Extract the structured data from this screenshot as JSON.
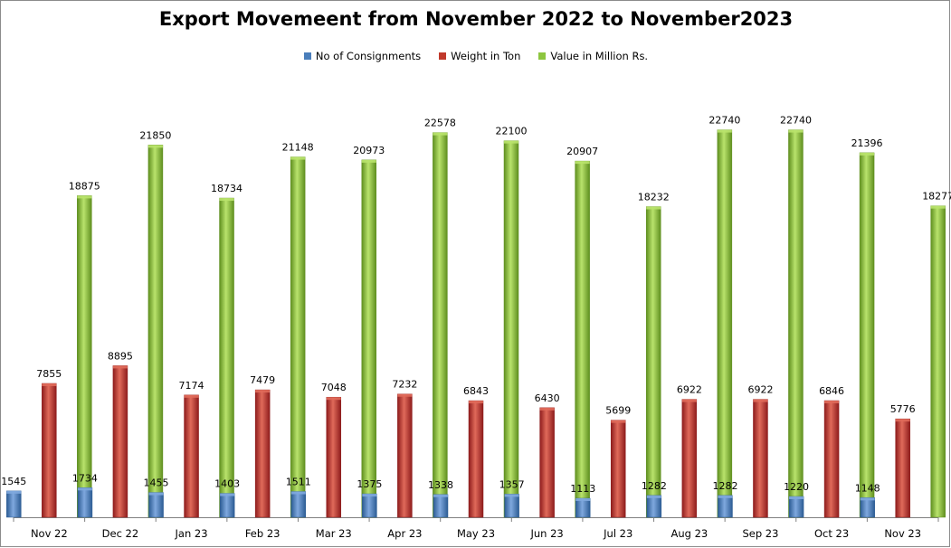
{
  "chart_data": {
    "type": "bar",
    "title": "Export Movemeent from November 2022 to November2023",
    "categories": [
      "Nov 22",
      "Dec 22",
      "Jan 23",
      "Feb 23",
      "Mar 23",
      "Apr 23",
      "May 23",
      "Jun 23",
      "Jul 23",
      "Aug 23",
      "Sep 23",
      "Oct 23",
      "Nov 23"
    ],
    "series": [
      {
        "name": "No of Consignments",
        "color": "#4a7ebb",
        "values": [
          1545,
          1734,
          1455,
          1403,
          1511,
          1375,
          1338,
          1357,
          1113,
          1282,
          1282,
          1220,
          1148
        ]
      },
      {
        "name": "Weight in Ton",
        "color": "#c0392b",
        "values": [
          7855,
          8895,
          7174,
          7479,
          7048,
          7232,
          6843,
          6430,
          5699,
          6922,
          6922,
          6846,
          5776
        ]
      },
      {
        "name": "Value in Million Rs.",
        "color": "#8dc63f",
        "values": [
          18875,
          21850,
          18734,
          21148,
          20973,
          22578,
          22100,
          20907,
          18232,
          22740,
          22740,
          21396,
          18277
        ]
      }
    ],
    "xlabel": "",
    "ylabel": "",
    "ylim": [
      0,
      25000
    ],
    "grid": false,
    "data_labels": true,
    "legend_position": "top"
  }
}
